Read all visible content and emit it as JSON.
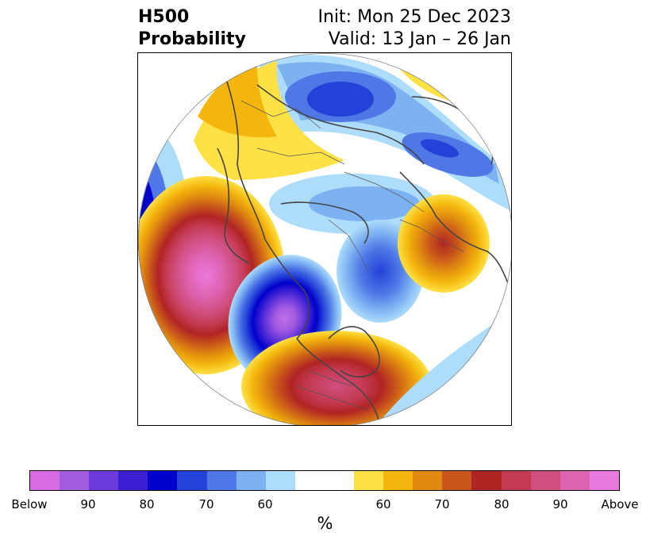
{
  "title": {
    "left_line1": "H500",
    "left_line2": "Probability",
    "right_line1": "Init: Mon 25 Dec 2023",
    "right_line2": "Valid: 13 Jan – 26 Jan"
  },
  "colorbar": {
    "colors": [
      "#d66be2",
      "#a35be0",
      "#6e3bdb",
      "#3a1fd3",
      "#0000cc",
      "#2441d8",
      "#4f78e6",
      "#7db2f2",
      "#aedcfb",
      "#ffffff",
      "#ffffff",
      "#fee145",
      "#f4b60c",
      "#e08b10",
      "#c8561a",
      "#b02424",
      "#c43a52",
      "#cf4f7f",
      "#de63b0",
      "#ea7adf"
    ],
    "tick_labels": [
      "Below",
      "90",
      "80",
      "70",
      "60",
      "60",
      "70",
      "80",
      "90",
      "Above"
    ],
    "unit": "%"
  }
}
